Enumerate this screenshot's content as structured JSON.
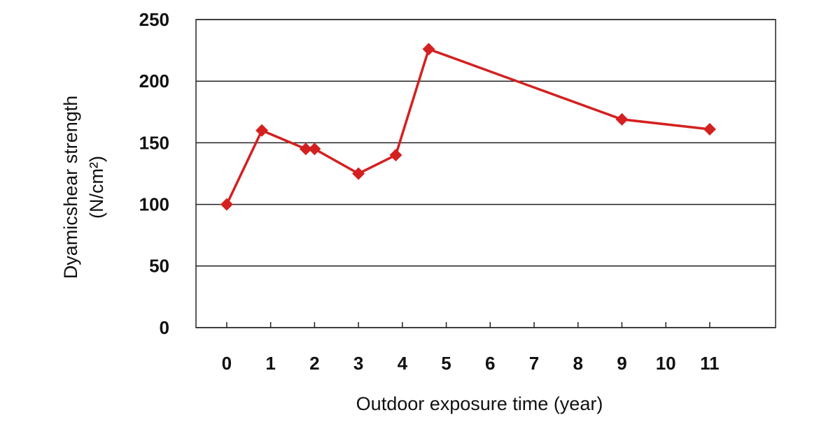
{
  "chart_data": {
    "type": "line",
    "x_label": "Outdoor exposure time (year)",
    "y_label": [
      "Dyamicshear strength",
      "(N/cm²)"
    ],
    "x": [
      0,
      0.8,
      1.8,
      2,
      3,
      3.85,
      4.6,
      9,
      11
    ],
    "series": [
      {
        "name": "Dynamic shear strength",
        "color": "#d42020",
        "values": [
          100,
          160,
          145,
          145,
          125,
          140,
          226,
          169,
          161
        ]
      }
    ],
    "xlim": [
      -0.7,
      12.5
    ],
    "xticks": [
      0,
      1,
      2,
      3,
      4,
      5,
      6,
      7,
      8,
      9,
      10,
      11
    ],
    "ylim": [
      0,
      250
    ],
    "yticks": [
      0,
      50,
      100,
      150,
      200,
      250
    ],
    "grid": true
  }
}
